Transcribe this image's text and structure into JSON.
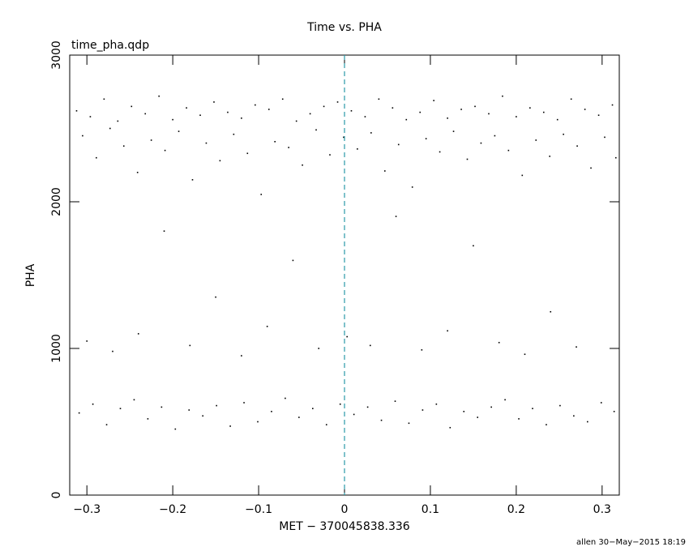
{
  "chart_data": {
    "type": "scatter",
    "title": "Time vs. PHA",
    "annotation": "time_pha.qdp",
    "x_label": "MET − 370045838.336",
    "y_label": "PHA",
    "footer": "allen 30−May−2015 18:19",
    "xlim": [
      -0.32,
      0.32
    ],
    "ylim": [
      0,
      3000
    ],
    "xticks": [
      {
        "value": -0.3,
        "label": "−0.3"
      },
      {
        "value": -0.2,
        "label": "−0.2"
      },
      {
        "value": -0.1,
        "label": "−0.1"
      },
      0,
      0.1,
      0.2,
      0.3
    ],
    "yticks": [
      0,
      1000,
      2000,
      3000
    ],
    "vline": 0,
    "vline_color": "#2a9aa8",
    "color": "#000000",
    "series": [
      {
        "name": "PHA",
        "x": [
          -0.312,
          -0.296,
          -0.28,
          -0.264,
          -0.248,
          -0.232,
          -0.216,
          -0.2,
          -0.184,
          -0.168,
          -0.152,
          -0.136,
          -0.12,
          -0.104,
          -0.088,
          -0.072,
          -0.056,
          -0.04,
          -0.024,
          -0.008,
          0.008,
          0.024,
          0.04,
          0.056,
          0.072,
          0.088,
          0.104,
          0.12,
          0.136,
          0.152,
          0.168,
          0.184,
          0.2,
          0.216,
          0.232,
          0.248,
          0.264,
          0.28,
          0.296,
          0.312,
          -0.305,
          -0.289,
          -0.273,
          -0.257,
          -0.241,
          -0.225,
          -0.209,
          -0.193,
          -0.177,
          -0.161,
          -0.145,
          -0.129,
          -0.113,
          -0.097,
          -0.081,
          -0.065,
          -0.049,
          -0.033,
          -0.017,
          -0.001,
          0.015,
          0.031,
          0.047,
          0.063,
          0.079,
          0.095,
          0.111,
          0.127,
          0.143,
          0.159,
          0.175,
          0.191,
          0.207,
          0.223,
          0.239,
          0.255,
          0.271,
          0.287,
          0.303,
          0.316,
          -0.309,
          -0.293,
          -0.277,
          -0.261,
          -0.245,
          -0.229,
          -0.213,
          -0.197,
          -0.181,
          -0.165,
          -0.149,
          -0.133,
          -0.117,
          -0.101,
          -0.085,
          -0.069,
          -0.053,
          -0.037,
          -0.021,
          -0.005,
          0.011,
          0.027,
          0.043,
          0.059,
          0.075,
          0.091,
          0.107,
          0.123,
          0.139,
          0.155,
          0.171,
          0.187,
          0.203,
          0.219,
          0.235,
          0.251,
          0.267,
          0.283,
          0.299,
          0.314,
          -0.3,
          -0.27,
          -0.24,
          -0.21,
          -0.18,
          -0.15,
          -0.12,
          -0.09,
          -0.06,
          -0.03,
          0.003,
          0.03,
          0.06,
          0.09,
          0.12,
          0.15,
          0.18,
          0.21,
          0.24,
          0.27
        ],
        "y": [
          2620,
          2580,
          2700,
          2550,
          2650,
          2600,
          2720,
          2560,
          2640,
          2590,
          2680,
          2610,
          2570,
          2660,
          2630,
          2700,
          2550,
          2600,
          2650,
          2680,
          2620,
          2580,
          2700,
          2640,
          2560,
          2610,
          2690,
          2570,
          2630,
          2650,
          2600,
          2720,
          2580,
          2640,
          2610,
          2560,
          2700,
          2630,
          2590,
          2660,
          2450,
          2300,
          2500,
          2380,
          2200,
          2420,
          2350,
          2480,
          2150,
          2400,
          2280,
          2460,
          2330,
          2050,
          2410,
          2370,
          2250,
          2490,
          2320,
          2440,
          2360,
          2470,
          2210,
          2390,
          2100,
          2430,
          2340,
          2480,
          2290,
          2400,
          2450,
          2350,
          2180,
          2420,
          2310,
          2460,
          2380,
          2230,
          2440,
          2300,
          560,
          620,
          480,
          590,
          650,
          520,
          600,
          450,
          580,
          540,
          610,
          470,
          630,
          500,
          570,
          660,
          530,
          590,
          480,
          620,
          550,
          600,
          510,
          640,
          490,
          580,
          620,
          460,
          570,
          530,
          600,
          650,
          520,
          590,
          480,
          610,
          540,
          500,
          630,
          570,
          1050,
          980,
          1100,
          1800,
          1020,
          1350,
          950,
          1150,
          1600,
          1000,
          1080,
          1020,
          1900,
          990,
          1120,
          1700,
          1040,
          960,
          1250,
          1010
        ]
      }
    ]
  }
}
